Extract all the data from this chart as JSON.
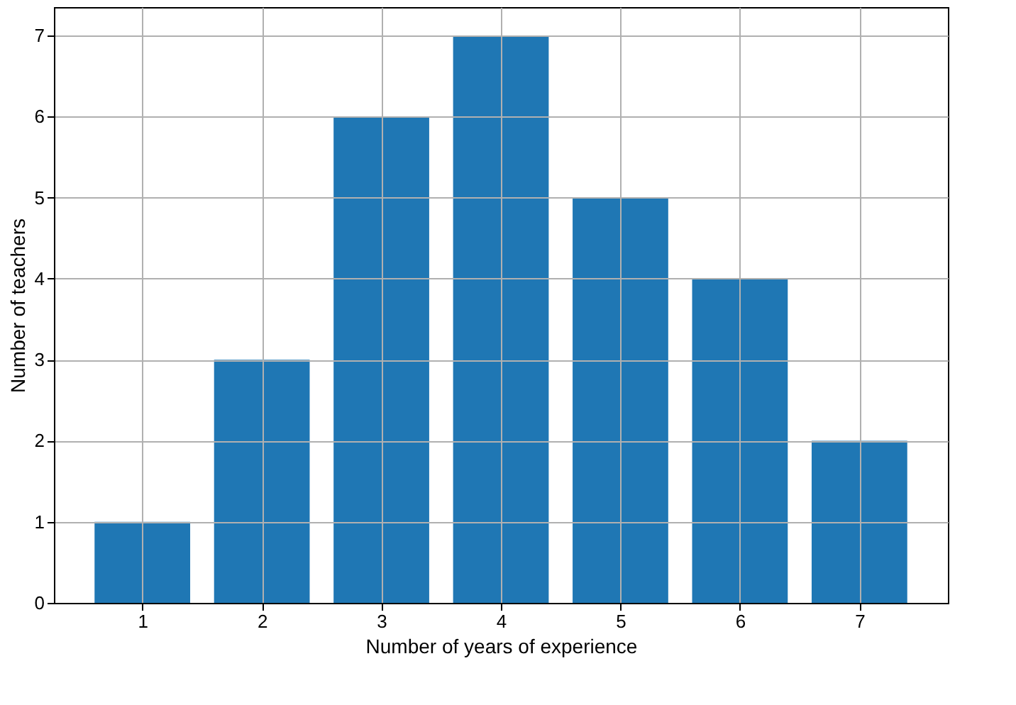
{
  "chart_data": {
    "type": "bar",
    "xlabel": "Number of years of experience",
    "ylabel": "Number of teachers",
    "x": [
      1,
      2,
      3,
      4,
      5,
      6,
      7
    ],
    "values": [
      1,
      3,
      6,
      7,
      5,
      4,
      2
    ],
    "color": "#1f77b4",
    "xlim": [
      0.26,
      7.74
    ],
    "xticks": [
      1,
      2,
      3,
      4,
      5,
      6,
      7
    ],
    "ylim": [
      0,
      7.35
    ],
    "yticks": [
      0,
      1,
      2,
      3,
      4,
      5,
      6,
      7
    ],
    "grid": true
  }
}
